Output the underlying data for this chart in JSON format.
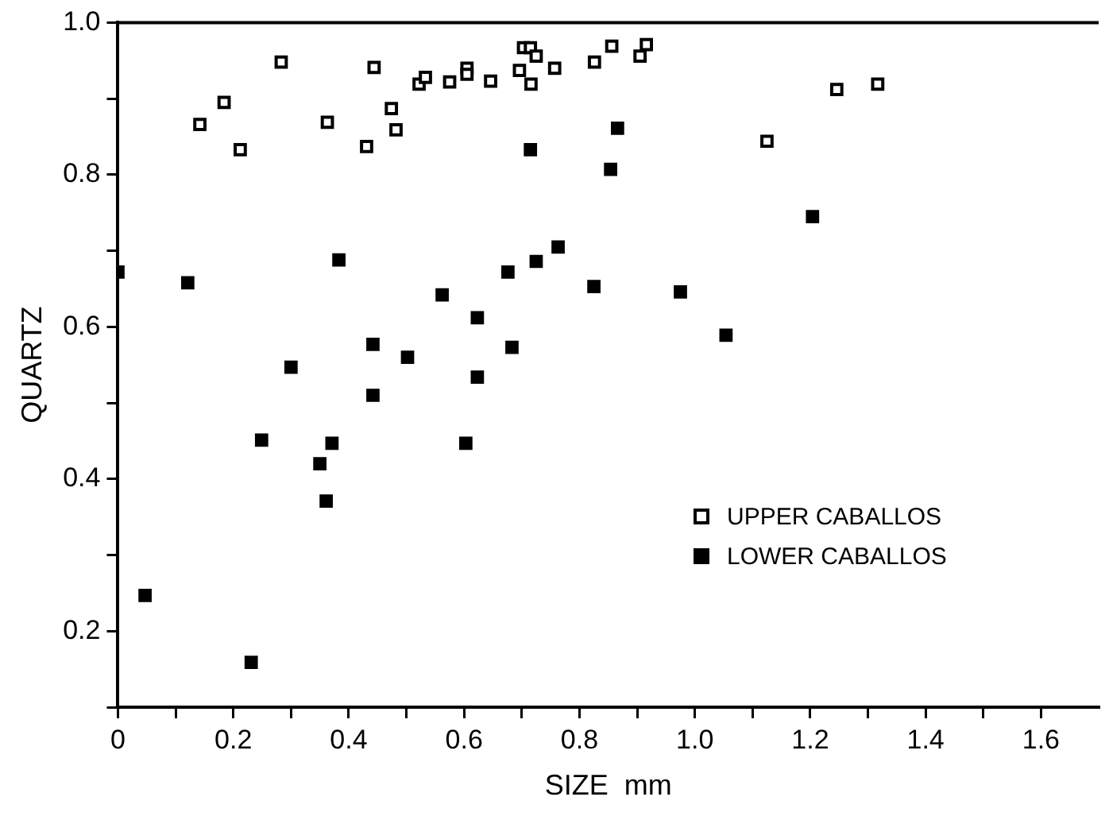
{
  "chart_data": {
    "type": "scatter",
    "xlabel": "SIZE  mm",
    "ylabel": "QUARTZ",
    "xlim": [
      0,
      1.7
    ],
    "xticks": [
      0,
      {
        "value": 0.1,
        "label": null
      },
      0.2,
      {
        "value": 0.3,
        "label": null
      },
      0.4,
      {
        "value": 0.5,
        "label": null
      },
      0.6,
      {
        "value": 0.7,
        "label": null
      },
      0.8,
      {
        "value": 0.9,
        "label": null
      },
      {
        "value": 1,
        "label": "1.0"
      },
      {
        "value": 1.1,
        "label": null
      },
      1.2,
      {
        "value": 1.3,
        "label": null
      },
      1.4,
      {
        "value": 1.5,
        "label": null
      },
      1.6
    ],
    "ylim": [
      0.1,
      1
    ],
    "yticks": [
      {
        "value": 0.1,
        "label": null
      },
      0.2,
      {
        "value": 0.3,
        "label": null
      },
      0.4,
      {
        "value": 0.5,
        "label": null
      },
      0.6,
      {
        "value": 0.7,
        "label": null
      },
      0.8,
      {
        "value": 0.9,
        "label": null
      },
      {
        "value": 1,
        "label": "1.0"
      }
    ],
    "grid": false,
    "legend": "bottom right",
    "marker": "square",
    "series": [
      {
        "name": "UPPER CABALLOS",
        "color": "#ffffff",
        "x": [
          0.142,
          0.184,
          0.212,
          0.283,
          0.363,
          0.431,
          0.444,
          0.474,
          0.482,
          0.522,
          0.533,
          0.575,
          0.605,
          0.605,
          0.646,
          0.696,
          0.703,
          0.715,
          0.716,
          0.725,
          0.757,
          0.826,
          0.856,
          0.905,
          0.916,
          1.125,
          1.246,
          1.317
        ],
        "values": [
          0.866,
          0.895,
          0.833,
          0.948,
          0.869,
          0.837,
          0.941,
          0.887,
          0.859,
          0.919,
          0.928,
          0.922,
          0.94,
          0.932,
          0.923,
          0.937,
          0.967,
          0.967,
          0.919,
          0.956,
          0.94,
          0.948,
          0.969,
          0.956,
          0.971,
          0.844,
          0.912,
          0.919
        ]
      },
      {
        "name": "LOWER CABALLOS",
        "color": "#000000",
        "x": [
          0,
          0.047,
          0.121,
          0.231,
          0.249,
          0.3,
          0.35,
          0.361,
          0.371,
          0.383,
          0.442,
          0.442,
          0.502,
          0.562,
          0.603,
          0.623,
          0.623,
          0.676,
          0.683,
          0.715,
          0.725,
          0.763,
          0.825,
          0.854,
          0.866,
          0.975,
          1.054,
          1.204
        ],
        "values": [
          0.672,
          0.247,
          0.658,
          0.159,
          0.451,
          0.547,
          0.42,
          0.371,
          0.447,
          0.688,
          0.577,
          0.51,
          0.56,
          0.642,
          0.447,
          0.612,
          0.534,
          0.672,
          0.573,
          0.833,
          0.686,
          0.705,
          0.653,
          0.807,
          0.861,
          0.646,
          0.589,
          0.745
        ]
      }
    ]
  }
}
